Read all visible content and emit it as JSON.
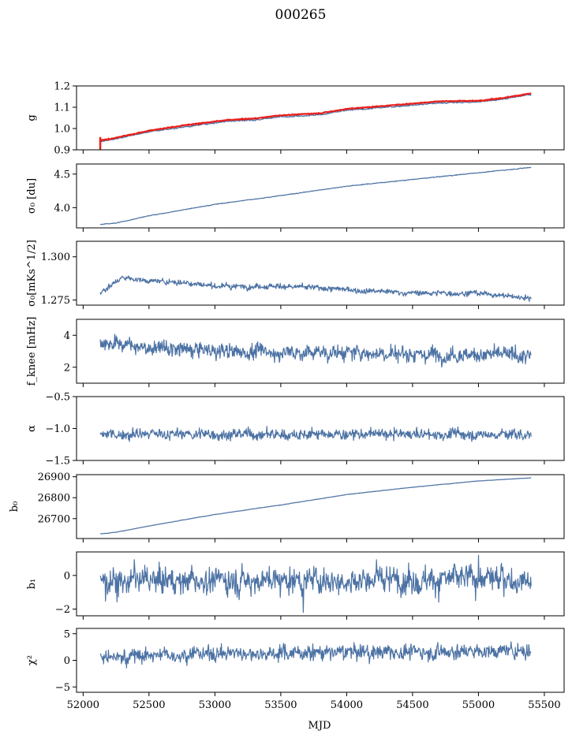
{
  "chart_data": {
    "title": "000265",
    "type": "line",
    "shared_x": {
      "label": "MJD",
      "range": [
        51950,
        55650
      ],
      "ticks": [
        52000,
        52500,
        53000,
        53500,
        54000,
        54500,
        55000,
        55500
      ],
      "tick_labels": [
        "52000",
        "52500",
        "53000",
        "53500",
        "54000",
        "54500",
        "55000",
        "55500"
      ],
      "data_start": 52130,
      "data_end": 55400
    },
    "panels": [
      {
        "id": "g",
        "ylabel": "g",
        "ylim": [
          0.9,
          1.2
        ],
        "yticks": [
          0.9,
          1.0,
          1.1,
          1.2
        ],
        "ytick_labels": [
          "0.9",
          "1.0",
          "1.1",
          "1.2"
        ],
        "series": [
          {
            "name": "g",
            "color": "#4c72a4",
            "trend": [
              [
                52130,
                0.94
              ],
              [
                52200,
                0.945
              ],
              [
                52500,
                0.985
              ],
              [
                52800,
                1.01
              ],
              [
                53100,
                1.035
              ],
              [
                53300,
                1.04
              ],
              [
                53500,
                1.055
              ],
              [
                53800,
                1.065
              ],
              [
                54000,
                1.085
              ],
              [
                54400,
                1.105
              ],
              [
                54700,
                1.12
              ],
              [
                55000,
                1.125
              ],
              [
                55200,
                1.14
              ],
              [
                55400,
                1.16
              ]
            ],
            "noise": 0.002
          },
          {
            "name": "g-fit",
            "color": "#e8201c",
            "trend": [
              [
                52130,
                0.945
              ],
              [
                52200,
                0.95
              ],
              [
                52500,
                0.99
              ],
              [
                52800,
                1.018
              ],
              [
                53100,
                1.04
              ],
              [
                53300,
                1.047
              ],
              [
                53500,
                1.062
              ],
              [
                53800,
                1.072
              ],
              [
                54000,
                1.092
              ],
              [
                54400,
                1.112
              ],
              [
                54700,
                1.128
              ],
              [
                55000,
                1.13
              ],
              [
                55200,
                1.145
              ],
              [
                55400,
                1.165
              ]
            ],
            "noise": 0.001
          }
        ]
      },
      {
        "id": "sigma0_du",
        "ylabel": "σ₀ [du]",
        "ylim": [
          3.7,
          4.65
        ],
        "yticks": [
          4.0,
          4.5
        ],
        "ytick_labels": [
          "4.0",
          "4.5"
        ],
        "series": [
          {
            "name": "sigma0",
            "color": "#4c72a4",
            "trend": [
              [
                52130,
                3.75
              ],
              [
                52250,
                3.77
              ],
              [
                52500,
                3.88
              ],
              [
                53000,
                4.05
              ],
              [
                53500,
                4.18
              ],
              [
                54000,
                4.32
              ],
              [
                54500,
                4.42
              ],
              [
                55000,
                4.52
              ],
              [
                55400,
                4.6
              ]
            ],
            "noise": 0.003
          }
        ]
      },
      {
        "id": "sigma0_mks",
        "ylabel": "σ₀[mKs^1/2]",
        "ylim": [
          1.272,
          1.309
        ],
        "yticks": [
          1.275,
          1.3
        ],
        "ytick_labels": [
          "1.275",
          "1.300"
        ],
        "series": [
          {
            "name": "sigma0-mks",
            "color": "#4c72a4",
            "trend": [
              [
                52130,
                1.279
              ],
              [
                52200,
                1.283
              ],
              [
                52300,
                1.288
              ],
              [
                52500,
                1.286
              ],
              [
                52800,
                1.285
              ],
              [
                53000,
                1.283
              ],
              [
                53500,
                1.283
              ],
              [
                54000,
                1.281
              ],
              [
                54500,
                1.279
              ],
              [
                55000,
                1.279
              ],
              [
                55400,
                1.276
              ]
            ],
            "noise": 0.0009
          }
        ]
      },
      {
        "id": "fknee",
        "ylabel": "f_knee [mHz]",
        "ylim": [
          1.0,
          5.0
        ],
        "yticks": [
          2,
          4
        ],
        "ytick_labels": [
          "2",
          "4"
        ],
        "series": [
          {
            "name": "fknee",
            "color": "#4c72a4",
            "trend": [
              [
                52130,
                3.6
              ],
              [
                52500,
                3.2
              ],
              [
                53000,
                3.0
              ],
              [
                54000,
                2.9
              ],
              [
                55000,
                2.8
              ],
              [
                55400,
                2.7
              ]
            ],
            "noise": 0.28
          }
        ]
      },
      {
        "id": "alpha",
        "ylabel": "α",
        "ylim": [
          -1.5,
          -0.5
        ],
        "yticks": [
          -1.5,
          -1.0,
          -0.5
        ],
        "ytick_labels": [
          "−1.5",
          "−1.0",
          "−0.5"
        ],
        "series": [
          {
            "name": "alpha",
            "color": "#4c72a4",
            "trend": [
              [
                52130,
                -1.09
              ],
              [
                55400,
                -1.09
              ]
            ],
            "noise": 0.05
          }
        ]
      },
      {
        "id": "b0",
        "ylabel": "b₀",
        "ylim": [
          26605,
          26910
        ],
        "yticks": [
          26700,
          26800,
          26900
        ],
        "ytick_labels": [
          "26700",
          "26800",
          "26900"
        ],
        "series": [
          {
            "name": "b0",
            "color": "#4c72a4",
            "trend": [
              [
                52130,
                26627
              ],
              [
                52250,
                26635
              ],
              [
                52500,
                26665
              ],
              [
                53000,
                26720
              ],
              [
                53500,
                26765
              ],
              [
                54000,
                26815
              ],
              [
                54500,
                26850
              ],
              [
                55000,
                26880
              ],
              [
                55400,
                26895
              ]
            ],
            "noise": 0.6
          }
        ]
      },
      {
        "id": "b1",
        "ylabel": "b₁",
        "ylim": [
          -2.4,
          1.4
        ],
        "yticks": [
          -2,
          0
        ],
        "ytick_labels": [
          "−2",
          "0"
        ],
        "series": [
          {
            "name": "b1",
            "color": "#4c72a4",
            "trend": [
              [
                52130,
                -0.3
              ],
              [
                55400,
                -0.2
              ]
            ],
            "noise": 0.45,
            "spikes": [
              [
                53670,
                -2.2
              ],
              [
                55000,
                1.2
              ],
              [
                54980,
                -1.5
              ]
            ]
          }
        ]
      },
      {
        "id": "chi2",
        "ylabel": "χ²",
        "ylim": [
          -6,
          6
        ],
        "yticks": [
          -5,
          0,
          5
        ],
        "ytick_labels": [
          "−5",
          "0",
          "5"
        ],
        "series": [
          {
            "name": "chi2",
            "color": "#4c72a4",
            "trend": [
              [
                52130,
                0.5
              ],
              [
                52500,
                1.0
              ],
              [
                53000,
                1.3
              ],
              [
                54000,
                1.5
              ],
              [
                55000,
                1.7
              ],
              [
                55400,
                1.8
              ]
            ],
            "noise": 0.8
          }
        ]
      }
    ]
  }
}
